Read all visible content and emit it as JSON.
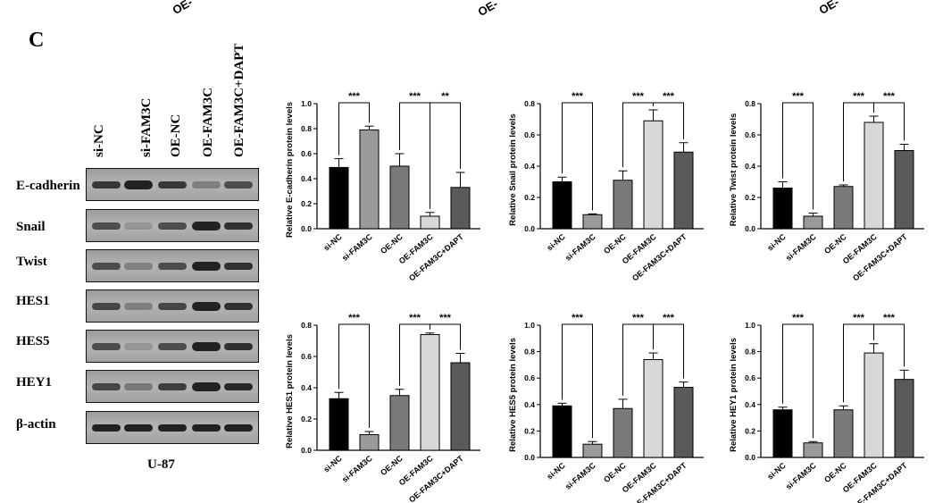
{
  "top_cut_headers": [
    "OE-",
    "OE-",
    "OE-"
  ],
  "panel_label": "C",
  "lane_labels": [
    "si-NC",
    "si-FAM3C",
    "OE-NC",
    "OE-FAM3C",
    "OE-FAM3C+DAPT"
  ],
  "row_labels": [
    "E-cadherin",
    "Snail",
    "Twist",
    "HES1",
    "HES5",
    "HEY1",
    "β-actin"
  ],
  "cell_line_label": "U-87",
  "colors": {
    "black": "#000000",
    "light_gray": "#9a9a9a",
    "mid_gray": "#7a7a7a",
    "pale_gray": "#d8d8d8",
    "dark_gray": "#5a5a5a"
  },
  "chart_data": [
    {
      "type": "bar",
      "categories": [
        "si-NC",
        "si-FAM3C",
        "OE-NC",
        "OE-FAM3C",
        "OE-FAM3C+DAPT"
      ],
      "values": [
        0.49,
        0.79,
        0.5,
        0.1,
        0.33
      ],
      "errors": [
        0.07,
        0.03,
        0.1,
        0.03,
        0.12
      ],
      "ylabel": "Relative E-cadherin protein levels",
      "ylim": [
        0,
        1.0
      ],
      "yticks": [
        "0.0",
        "0.2",
        "0.4",
        "0.6",
        "0.8",
        "1.0"
      ],
      "significance": [
        {
          "from": 0,
          "to": 1,
          "label": "***"
        },
        {
          "from": 2,
          "to": 3,
          "label": "***"
        },
        {
          "from": 3,
          "to": 4,
          "label": "**"
        }
      ]
    },
    {
      "type": "bar",
      "categories": [
        "si-NC",
        "si-FAM3C",
        "OE-NC",
        "OE-FAM3C",
        "OE-FAM3C+DAPT"
      ],
      "values": [
        0.3,
        0.09,
        0.31,
        0.69,
        0.49
      ],
      "errors": [
        0.03,
        0.005,
        0.06,
        0.07,
        0.06
      ],
      "ylabel": "Relative Snail protein levels",
      "ylim": [
        0,
        0.8
      ],
      "yticks": [
        "0.0",
        "0.2",
        "0.4",
        "0.6",
        "0.8"
      ],
      "significance": [
        {
          "from": 0,
          "to": 1,
          "label": "***"
        },
        {
          "from": 2,
          "to": 3,
          "label": "***"
        },
        {
          "from": 3,
          "to": 4,
          "label": "***"
        }
      ]
    },
    {
      "type": "bar",
      "categories": [
        "si-NC",
        "si-FAM3C",
        "OE-NC",
        "OE-FAM3C",
        "OE-FAM3C+DAPT"
      ],
      "values": [
        0.26,
        0.08,
        0.27,
        0.68,
        0.5
      ],
      "errors": [
        0.04,
        0.02,
        0.01,
        0.04,
        0.04
      ],
      "ylabel": "Relative Twist protein levels",
      "ylim": [
        0,
        0.8
      ],
      "yticks": [
        "0.0",
        "0.2",
        "0.4",
        "0.6",
        "0.8"
      ],
      "significance": [
        {
          "from": 0,
          "to": 1,
          "label": "***"
        },
        {
          "from": 2,
          "to": 3,
          "label": "***"
        },
        {
          "from": 3,
          "to": 4,
          "label": "***"
        }
      ]
    },
    {
      "type": "bar",
      "categories": [
        "si-NC",
        "si-FAM3C",
        "OE-NC",
        "OE-FAM3C",
        "OE-FAM3C+DAPT"
      ],
      "values": [
        0.33,
        0.1,
        0.35,
        0.74,
        0.56
      ],
      "errors": [
        0.04,
        0.02,
        0.04,
        0.01,
        0.06
      ],
      "ylabel": "Relative HES1 protein levels",
      "ylim": [
        0,
        0.8
      ],
      "yticks": [
        "0.0",
        "0.2",
        "0.4",
        "0.6",
        "0.8"
      ],
      "significance": [
        {
          "from": 0,
          "to": 1,
          "label": "***"
        },
        {
          "from": 2,
          "to": 3,
          "label": "***"
        },
        {
          "from": 3,
          "to": 4,
          "label": "***"
        }
      ]
    },
    {
      "type": "bar",
      "categories": [
        "si-NC",
        "si-FAM3C",
        "OE-NC",
        "OE-FAM3C",
        "OE-FAM3C+DAPT"
      ],
      "values": [
        0.39,
        0.1,
        0.37,
        0.74,
        0.53
      ],
      "errors": [
        0.02,
        0.02,
        0.07,
        0.05,
        0.04
      ],
      "ylabel": "Relative HES5 protein levels",
      "ylim": [
        0,
        1.0
      ],
      "yticks": [
        "0.0",
        "0.2",
        "0.4",
        "0.6",
        "0.8",
        "1.0"
      ],
      "significance": [
        {
          "from": 0,
          "to": 1,
          "label": "***"
        },
        {
          "from": 2,
          "to": 3,
          "label": "***"
        },
        {
          "from": 3,
          "to": 4,
          "label": "***"
        }
      ]
    },
    {
      "type": "bar",
      "categories": [
        "si-NC",
        "si-FAM3C",
        "OE-NC",
        "OE-FAM3C",
        "OE-FAM3C+DAPT"
      ],
      "values": [
        0.36,
        0.11,
        0.36,
        0.79,
        0.59
      ],
      "errors": [
        0.02,
        0.01,
        0.03,
        0.07,
        0.07
      ],
      "ylabel": "Relative HEY1 protein levels",
      "ylim": [
        0,
        1.0
      ],
      "yticks": [
        "0.0",
        "0.2",
        "0.4",
        "0.6",
        "0.8",
        "1.0"
      ],
      "significance": [
        {
          "from": 0,
          "to": 1,
          "label": "***"
        },
        {
          "from": 2,
          "to": 3,
          "label": "***"
        },
        {
          "from": 3,
          "to": 4,
          "label": "***"
        }
      ]
    }
  ]
}
